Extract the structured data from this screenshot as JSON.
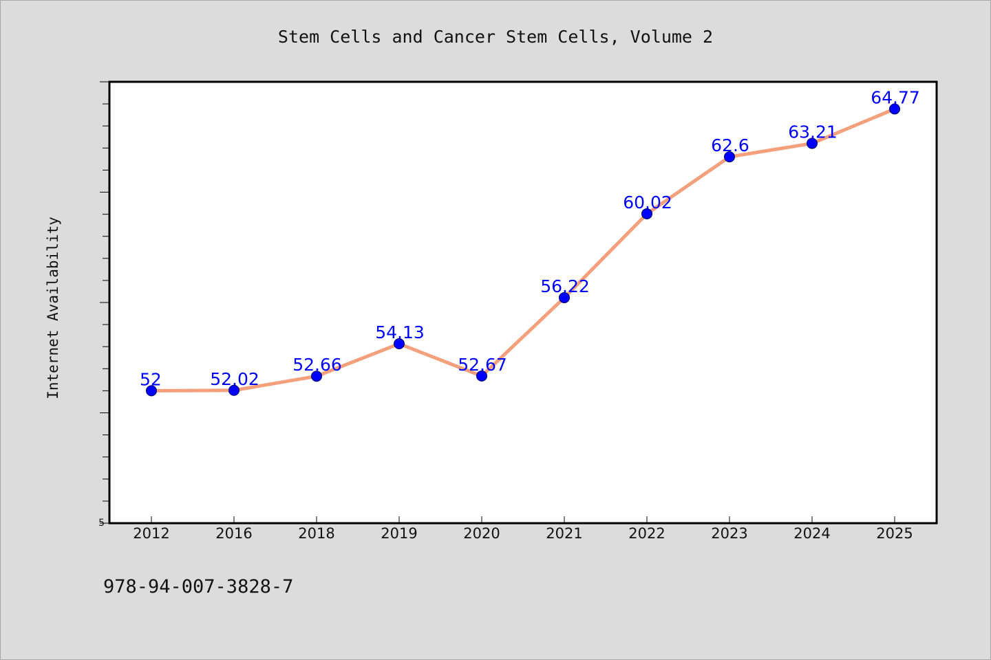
{
  "chart_data": {
    "type": "line",
    "title": "Stem Cells and Cancer Stem Cells, Volume 2",
    "ylabel": "Internet Availability",
    "xlabel": "",
    "categories": [
      "2012",
      "2016",
      "2018",
      "2019",
      "2020",
      "2021",
      "2022",
      "2023",
      "2024",
      "2025"
    ],
    "values": [
      52,
      52.02,
      52.66,
      54.13,
      52.67,
      56.22,
      60.02,
      62.6,
      63.21,
      64.77
    ],
    "data_labels": [
      "52",
      "52.02",
      "52.66",
      "54.13",
      "52.67",
      "56.22",
      "60.02",
      "62.6",
      "63.21",
      "64.77"
    ],
    "ylim": [
      46,
      66
    ],
    "y_tick_label": "5",
    "grid": false,
    "legend": "none",
    "line_color": "#f4a07c",
    "marker_color": "#0000ff",
    "label_color": "#0000ff"
  },
  "footer": {
    "isbn": "978-94-007-3828-7"
  }
}
